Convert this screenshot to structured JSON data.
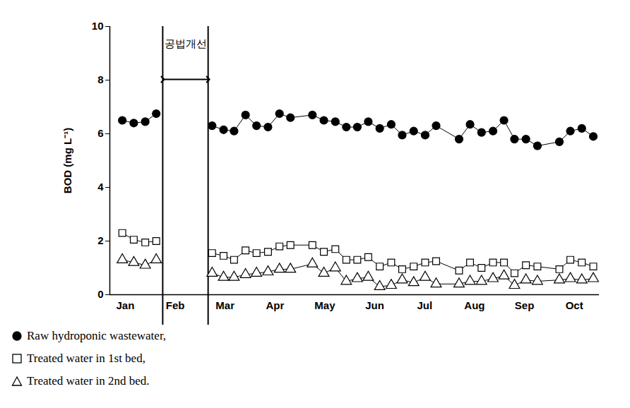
{
  "chart_data": {
    "type": "line",
    "y_label": "BOD (mg L⁻¹)",
    "x": [
      0.94,
      1.17,
      1.4,
      1.62,
      2.2,
      2.74,
      2.97,
      3.18,
      3.41,
      3.63,
      3.86,
      4.09,
      4.31,
      4.75,
      4.98,
      5.21,
      5.43,
      5.65,
      5.87,
      6.1,
      6.33,
      6.55,
      6.78,
      7.01,
      7.23,
      7.69,
      7.91,
      8.14,
      8.37,
      8.59,
      8.8,
      9.03,
      9.26,
      9.7,
      9.92,
      10.15,
      10.38
    ],
    "xlim": [
      0.69,
      10.5
    ],
    "xticks": [
      {
        "value": 1,
        "label": "Jan"
      },
      {
        "value": 2,
        "label": "Feb"
      },
      {
        "value": 3,
        "label": "Mar"
      },
      {
        "value": 4,
        "label": "Apr"
      },
      {
        "value": 5,
        "label": "May"
      },
      {
        "value": 6,
        "label": "Jun"
      },
      {
        "value": 7,
        "label": "Jul"
      },
      {
        "value": 8,
        "label": "Aug"
      },
      {
        "value": 9,
        "label": "Sep"
      },
      {
        "value": 10,
        "label": "Oct"
      }
    ],
    "ylim": [
      0,
      10
    ],
    "yticks": [
      0,
      2,
      4,
      6,
      8,
      10
    ],
    "annotations": [
      {
        "text": "공법개선",
        "x_start": 1.75,
        "x_end": 2.66
      }
    ],
    "legend": "bottom",
    "series": [
      {
        "name": "Raw hydroponic wastewater,",
        "color": "#000000",
        "marker": "filled_circle",
        "line_style": "solid",
        "values": [
          6.5,
          6.4,
          6.45,
          6.75,
          null,
          6.3,
          6.15,
          6.1,
          6.7,
          6.3,
          6.25,
          6.75,
          6.6,
          6.7,
          6.5,
          6.45,
          6.25,
          6.25,
          6.45,
          6.2,
          6.35,
          5.95,
          6.1,
          5.95,
          6.3,
          5.8,
          6.35,
          6.05,
          6.1,
          6.5,
          5.8,
          5.8,
          5.55,
          5.7,
          6.1,
          6.2,
          5.9
        ]
      },
      {
        "name": "Treated water in 1st bed,",
        "color": "#000000",
        "marker": "open_square",
        "line_style": "solid",
        "values": [
          2.3,
          2.05,
          1.95,
          2.0,
          null,
          1.55,
          1.45,
          1.3,
          1.65,
          1.55,
          1.6,
          1.8,
          1.85,
          1.85,
          1.6,
          1.7,
          1.3,
          1.3,
          1.4,
          1.05,
          1.2,
          0.95,
          1.05,
          1.2,
          1.25,
          0.9,
          1.2,
          1.0,
          1.2,
          1.2,
          0.8,
          1.1,
          1.05,
          0.95,
          1.3,
          1.2,
          1.05
        ]
      },
      {
        "name": "Treated water in 2nd bed.",
        "color": "#000000",
        "marker": "open_triangle",
        "line_style": "solid",
        "values": [
          1.3,
          1.2,
          1.1,
          1.3,
          null,
          0.8,
          0.65,
          0.65,
          0.75,
          0.8,
          0.85,
          0.95,
          0.95,
          1.15,
          0.8,
          1.0,
          0.5,
          0.6,
          0.65,
          0.3,
          0.35,
          0.55,
          0.45,
          0.65,
          0.4,
          0.4,
          0.5,
          0.5,
          0.6,
          0.7,
          0.35,
          0.55,
          0.5,
          0.55,
          0.6,
          0.55,
          0.6
        ]
      }
    ]
  }
}
